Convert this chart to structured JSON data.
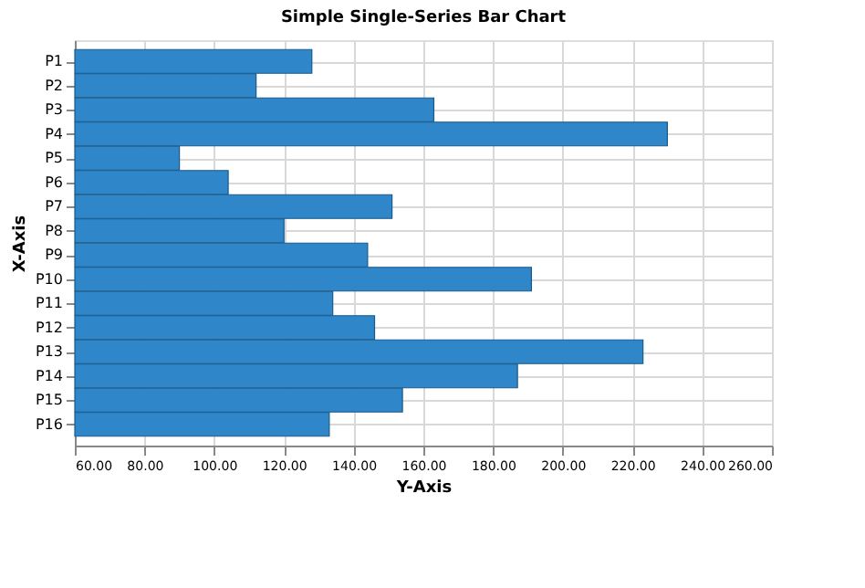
{
  "chart_data": {
    "type": "bar",
    "orientation": "horizontal",
    "title": "Simple Single-Series Bar Chart",
    "xlabel": "Y-Axis",
    "ylabel": "X-Axis",
    "categories": [
      "P1",
      "P2",
      "P3",
      "P4",
      "P5",
      "P6",
      "P7",
      "P8",
      "P9",
      "P10",
      "P11",
      "P12",
      "P13",
      "P14",
      "P15",
      "P16"
    ],
    "values": [
      128,
      112,
      163,
      230,
      90,
      104,
      151,
      120,
      144,
      191,
      134,
      146,
      223,
      187,
      154,
      133
    ],
    "color": "#2f86c8",
    "xlim": [
      60,
      260
    ],
    "xticks": [
      {
        "value": 60,
        "label": "60.00"
      },
      {
        "value": 80,
        "label": "80.00"
      },
      {
        "value": 100,
        "label": "100.00"
      },
      {
        "value": 120,
        "label": "120.00"
      },
      {
        "value": 140,
        "label": "140.00"
      },
      {
        "value": 160,
        "label": "160.00"
      },
      {
        "value": 180,
        "label": "180.00"
      },
      {
        "value": 200,
        "label": "200.00"
      },
      {
        "value": 220,
        "label": "220.00"
      },
      {
        "value": 240,
        "label": "240.00"
      },
      {
        "value": 260,
        "label": "260.00"
      }
    ],
    "grid": true
  }
}
